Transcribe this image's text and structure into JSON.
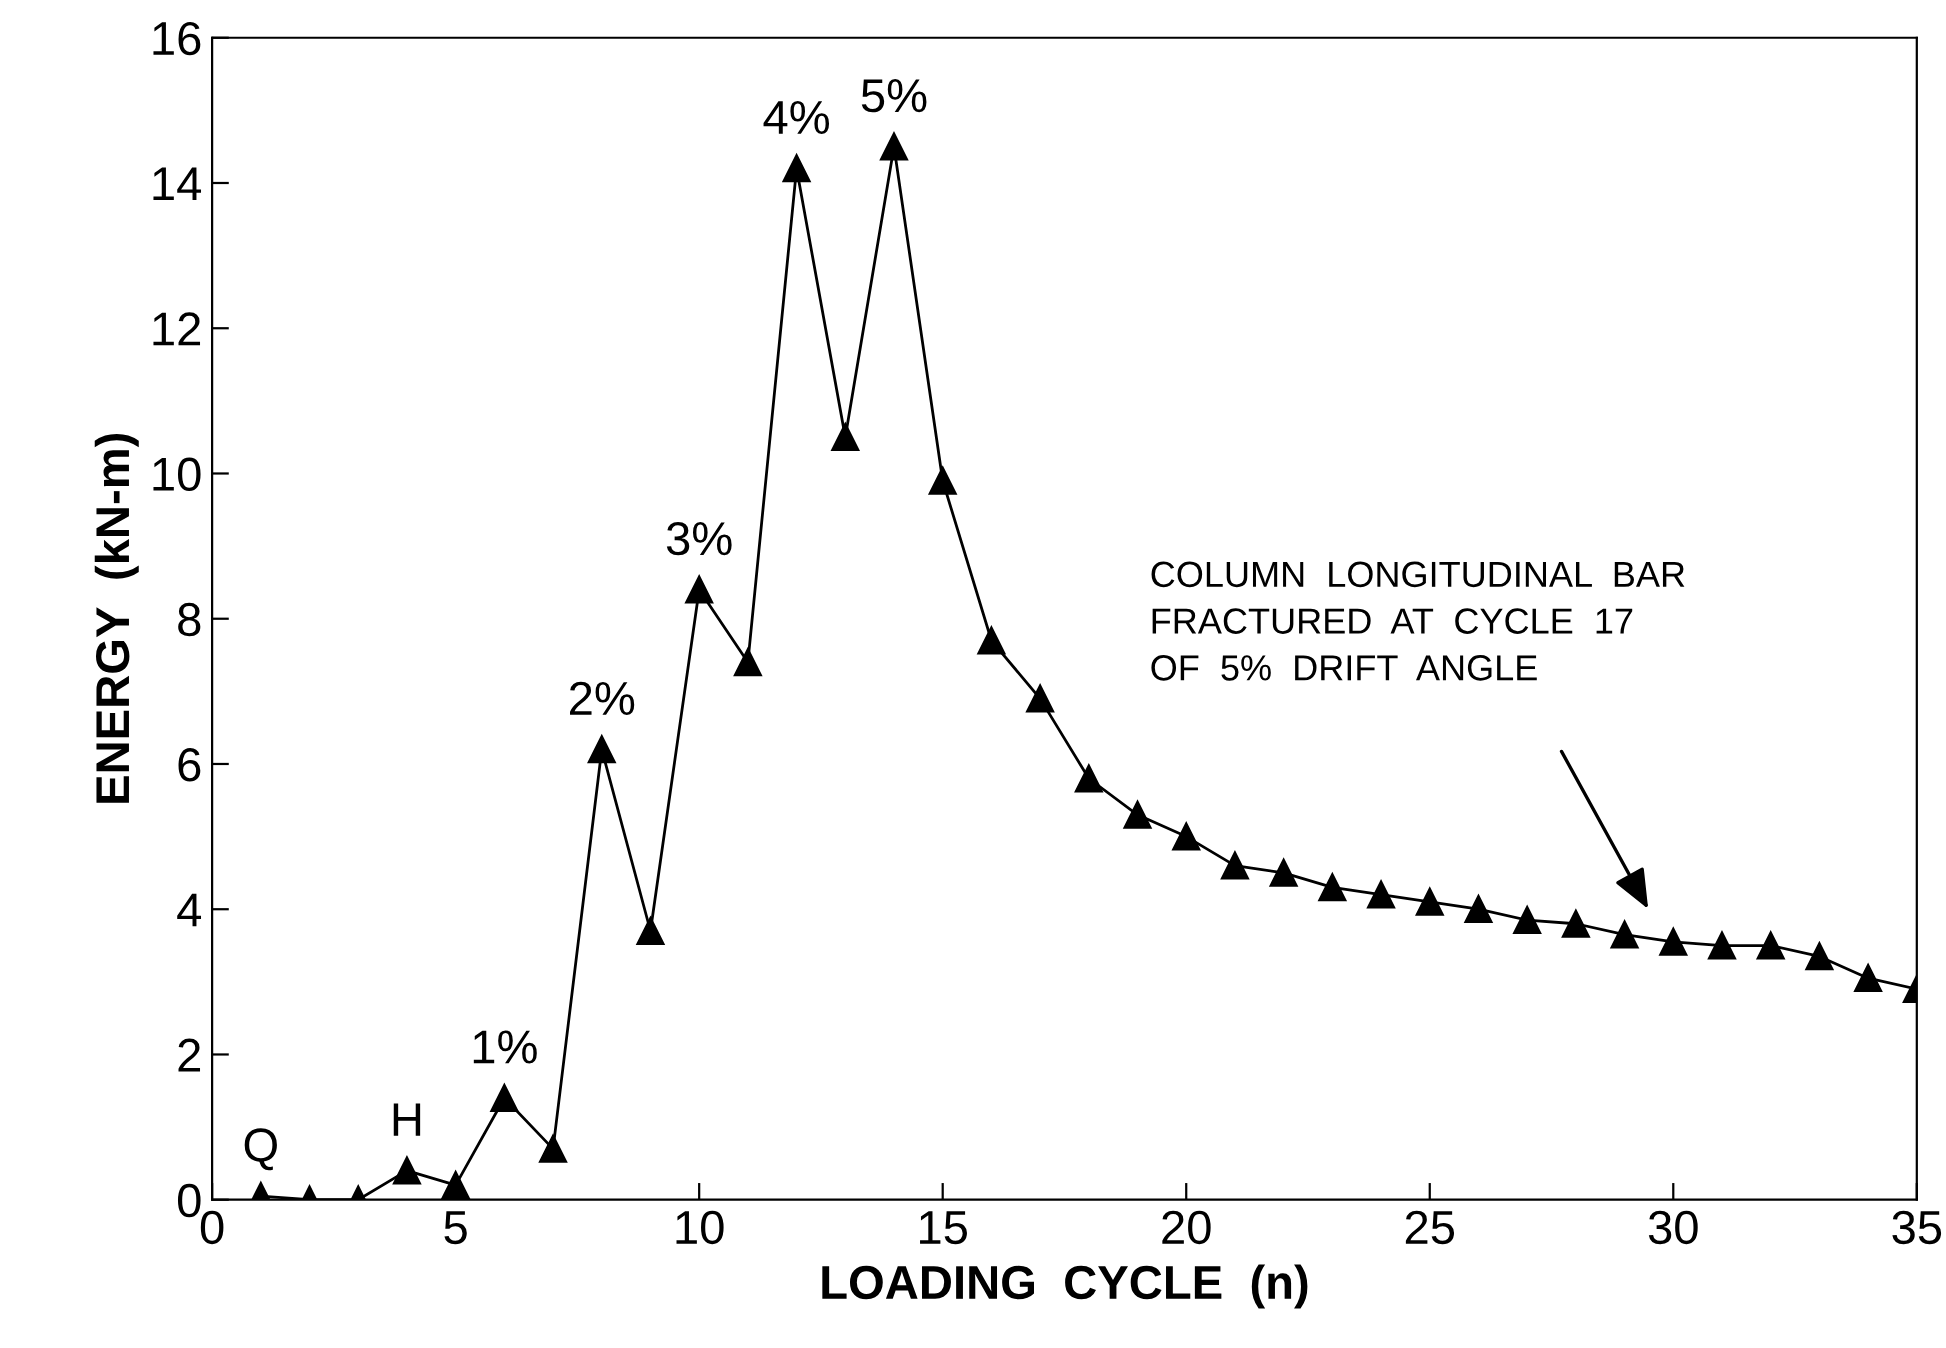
{
  "chart_data": {
    "type": "line",
    "xlabel": "LOADING  CYCLE  (n)",
    "ylabel": "ENERGY  (kN-m)",
    "x": [
      1,
      2,
      3,
      4,
      5,
      6,
      7,
      8,
      9,
      10,
      11,
      12,
      13,
      14,
      15,
      16,
      17,
      18,
      19,
      20,
      21,
      22,
      23,
      24,
      25,
      26,
      27,
      28,
      29,
      30,
      31,
      32,
      33,
      34,
      35
    ],
    "series": [
      {
        "color": "#000000",
        "values": [
          0.05,
          0.0,
          0.0,
          0.4,
          0.2,
          1.4,
          0.7,
          6.2,
          3.7,
          8.4,
          7.4,
          14.2,
          10.5,
          14.5,
          9.9,
          7.7,
          6.9,
          5.8,
          5.3,
          5.0,
          4.6,
          4.5,
          4.3,
          4.2,
          4.1,
          4.0,
          3.85,
          3.8,
          3.65,
          3.55,
          3.5,
          3.5,
          3.35,
          3.05,
          2.9
        ]
      }
    ],
    "marker": "triangle",
    "line_style": "solid",
    "grid": false,
    "xlim": [
      0,
      35
    ],
    "ylim": [
      0,
      16
    ],
    "xticks": [
      0,
      5,
      10,
      15,
      20,
      25,
      30,
      35
    ],
    "yticks": [
      0,
      2,
      4,
      6,
      8,
      10,
      12,
      14,
      16
    ],
    "annotations": [
      {
        "text": "Q",
        "x": 1,
        "y": 0.05
      },
      {
        "text": "H",
        "x": 4,
        "y": 0.4
      },
      {
        "text": "1%",
        "x": 6,
        "y": 1.4
      },
      {
        "text": "2%",
        "x": 8,
        "y": 6.2
      },
      {
        "text": "3%",
        "x": 10,
        "y": 8.4
      },
      {
        "text": "4%",
        "x": 12,
        "y": 14.2
      },
      {
        "text": "5%",
        "x": 14,
        "y": 14.5
      },
      "COLUMN  LONGITUDINAL  BAR\nFRACTURED  AT  CYCLE  17\nOF  5%  DRIFT  ANGLE"
    ]
  }
}
